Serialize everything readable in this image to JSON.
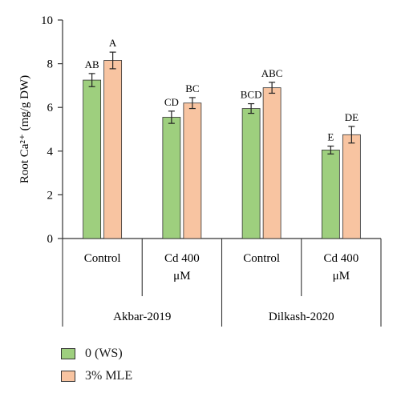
{
  "chart_data": {
    "type": "bar",
    "ylabel": "Root Ca²⁺ (mg/g DW)",
    "ylim": [
      0,
      10
    ],
    "yticks": [
      "0",
      "2",
      "4",
      "6",
      "8",
      "10"
    ],
    "categories": [
      "Control",
      "Cd 400 μM",
      "Control",
      "Cd 400 μM"
    ],
    "category_lines": [
      [
        "Control"
      ],
      [
        "Cd 400",
        "μM"
      ],
      [
        "Control"
      ],
      [
        "Cd 400",
        "μM"
      ]
    ],
    "groups": [
      {
        "label": "Akbar-2019",
        "categories": [
          0,
          1
        ]
      },
      {
        "label": "Dilkash-2020",
        "categories": [
          2,
          3
        ]
      }
    ],
    "series": [
      {
        "name": "0 (WS)",
        "color": "#9ecf7e",
        "values": [
          7.25,
          5.55,
          5.95,
          4.05
        ],
        "errors": [
          0.3,
          0.28,
          0.22,
          0.18
        ],
        "letters": [
          "AB",
          "CD",
          "BCD",
          "E"
        ]
      },
      {
        "name": "3% MLE",
        "color": "#f8c4a1",
        "values": [
          8.15,
          6.2,
          6.9,
          4.75
        ],
        "errors": [
          0.38,
          0.25,
          0.25,
          0.38
        ],
        "letters": [
          "A",
          "BC",
          "ABC",
          "DE"
        ]
      }
    ],
    "legend_position": "bottom-left",
    "grid": false
  }
}
